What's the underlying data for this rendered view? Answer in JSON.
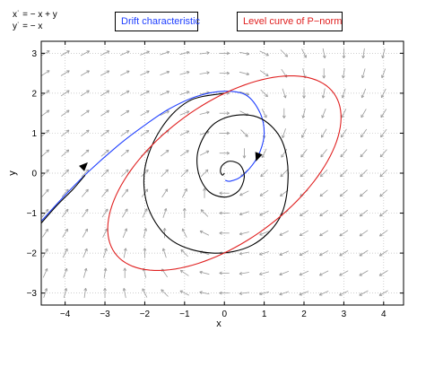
{
  "chart_data": {
    "type": "phase-portrait",
    "equations": [
      "x˙ = − x + y",
      "y˙ = − x"
    ],
    "annotations": [
      {
        "label": "Drift characteristic",
        "color": "#2040ff"
      },
      {
        "label": "Level curve of P−norm",
        "color": "#e02020"
      }
    ],
    "xlabel": "x",
    "ylabel": "y",
    "xlim": [
      -4.6,
      4.5
    ],
    "ylim": [
      -3.3,
      3.3
    ],
    "xticks": [
      "−4",
      "−3",
      "−2",
      "−1",
      "0",
      "1",
      "2",
      "3",
      "4"
    ],
    "yticks": [
      "−3",
      "−2",
      "−1",
      "0",
      "1",
      "2",
      "3"
    ],
    "xtick_values": [
      -4,
      -3,
      -2,
      -1,
      0,
      1,
      2,
      3,
      4
    ],
    "ytick_values": [
      -3,
      -2,
      -1,
      0,
      1,
      2,
      3
    ],
    "grid": true,
    "vector_field": {
      "dx": "-x + y",
      "dy": "-x",
      "color": "#9a9a9a"
    },
    "series": [
      {
        "role": "blue-trajectory",
        "color": "#2040ff",
        "points": [
          [
            -4.6,
            -1.2
          ],
          [
            -4.0,
            -0.55
          ],
          [
            -3.4,
            0.05
          ],
          [
            -2.6,
            0.75
          ],
          [
            -2.0,
            1.2
          ],
          [
            -1.4,
            1.6
          ],
          [
            -0.7,
            1.92
          ],
          [
            0,
            2.05
          ],
          [
            0.55,
            1.95
          ],
          [
            0.9,
            1.5
          ],
          [
            1.0,
            1.0
          ],
          [
            0.9,
            0.55
          ],
          [
            0.7,
            0.2
          ],
          [
            0.4,
            -0.1
          ],
          [
            0.15,
            -0.2
          ],
          [
            0.02,
            -0.18
          ]
        ]
      },
      {
        "role": "black-trajectory",
        "color": "#000000",
        "points": [
          [
            -4.6,
            -1.25
          ],
          [
            -4.2,
            -0.8
          ],
          [
            -3.8,
            -0.4
          ],
          [
            -3.5,
            -0.05
          ]
        ]
      },
      {
        "role": "black-spiral",
        "color": "#000000",
        "points": [
          [
            0,
            2.0
          ],
          [
            -0.9,
            1.8
          ],
          [
            -1.6,
            1.1
          ],
          [
            -2.0,
            0.1
          ],
          [
            -1.9,
            -0.9
          ],
          [
            -1.3,
            -1.7
          ],
          [
            -0.3,
            -2.0
          ],
          [
            0.7,
            -1.8
          ],
          [
            1.4,
            -1.1
          ],
          [
            1.6,
            -0.1
          ],
          [
            1.45,
            0.8
          ],
          [
            0.95,
            1.35
          ],
          [
            0.3,
            1.45
          ],
          [
            -0.3,
            1.2
          ],
          [
            -0.65,
            0.6
          ],
          [
            -0.65,
            0
          ],
          [
            -0.4,
            -0.45
          ],
          [
            0,
            -0.6
          ],
          [
            0.35,
            -0.45
          ],
          [
            0.5,
            -0.1
          ],
          [
            0.4,
            0.2
          ],
          [
            0.15,
            0.3
          ],
          [
            -0.05,
            0.2
          ],
          [
            -0.1,
            0.05
          ],
          [
            -0.05,
            -0.05
          ],
          [
            0,
            0
          ]
        ]
      },
      {
        "role": "level-curve",
        "color": "#e02020",
        "ellipse": {
          "center": [
            0,
            0
          ],
          "semi_major": 3.4,
          "semi_minor": 1.72,
          "angle_deg": 36
        }
      }
    ]
  }
}
